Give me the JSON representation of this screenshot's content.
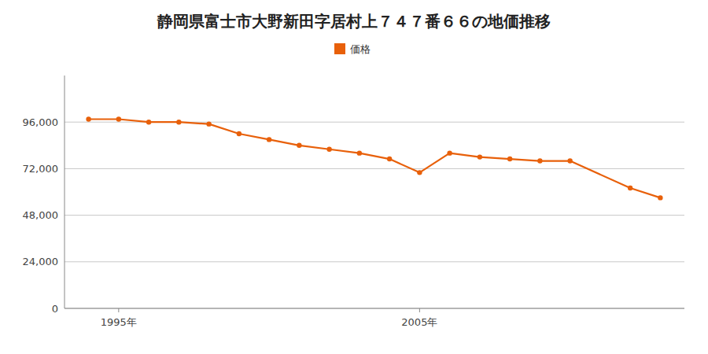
{
  "chart_data": {
    "type": "line",
    "title": "静岡県富士市大野新田字居村上７４７番６６の地価推移",
    "x": [
      1994,
      1995,
      1996,
      1997,
      1998,
      1999,
      2000,
      2001,
      2002,
      2003,
      2004,
      2005,
      2006,
      2007,
      2008,
      2009,
      2010,
      2012,
      2013
    ],
    "series": [
      {
        "name": "価格",
        "color": "#e8600a",
        "marker": "circle",
        "values": [
          97500,
          97500,
          96000,
          96000,
          95000,
          90000,
          87000,
          84000,
          82000,
          80000,
          77000,
          70000,
          80000,
          78000,
          77000,
          76000,
          76000,
          62000,
          57000
        ]
      }
    ],
    "xlim": [
      1993.2,
      2013.8
    ],
    "xticks": [
      {
        "value": 1995,
        "label": "1995年"
      },
      {
        "value": 2005,
        "label": "2005年"
      }
    ],
    "ylim": [
      0,
      120000
    ],
    "yticks": [
      0,
      {
        "value": 24000,
        "label": "24,000"
      },
      {
        "value": 48000,
        "label": "48,000"
      },
      {
        "value": 72000,
        "label": "72,000"
      },
      {
        "value": 96000,
        "label": "96,000"
      }
    ],
    "grid": true,
    "legend": "top"
  }
}
